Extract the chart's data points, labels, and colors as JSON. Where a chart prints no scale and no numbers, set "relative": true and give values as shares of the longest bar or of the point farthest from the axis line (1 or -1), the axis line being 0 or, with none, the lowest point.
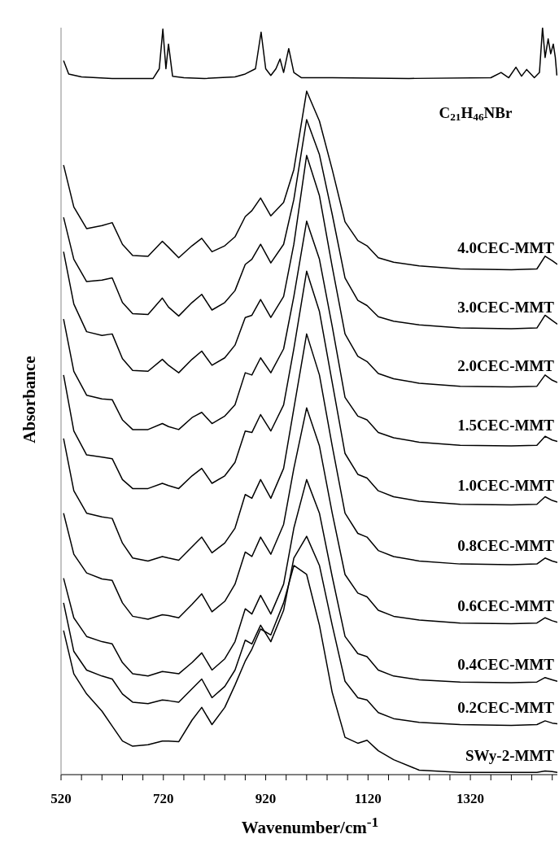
{
  "chart_data": {
    "type": "line",
    "relative": true,
    "xlabel": "Wavenumber/cm$^{-1}$",
    "ylabel": "Absorbance",
    "xlim": [
      520,
      1490
    ],
    "xticks": [
      520,
      {
        "value": 560,
        "label": null
      },
      {
        "value": 600,
        "label": null
      },
      {
        "value": 640,
        "label": null
      },
      {
        "value": 680,
        "label": null
      },
      720,
      {
        "value": 760,
        "label": null
      },
      {
        "value": 800,
        "label": null
      },
      {
        "value": 840,
        "label": null
      },
      {
        "value": 880,
        "label": null
      },
      920,
      {
        "value": 960,
        "label": null
      },
      {
        "value": 1000,
        "label": null
      },
      {
        "value": 1040,
        "label": null
      },
      {
        "value": 1080,
        "label": null
      },
      1120,
      {
        "value": 1160,
        "label": null
      },
      {
        "value": 1200,
        "label": null
      },
      {
        "value": 1240,
        "label": null
      },
      {
        "value": 1280,
        "label": null
      },
      1320,
      {
        "value": 1360,
        "label": null
      },
      {
        "value": 1400,
        "label": null
      },
      {
        "value": 1440,
        "label": null
      },
      {
        "value": 1480,
        "label": null
      }
    ],
    "grid": false,
    "legend": false,
    "marker": "none",
    "line_style": "solid",
    "x": [
      525,
      545,
      570,
      600,
      620,
      640,
      660,
      690,
      718,
      730,
      750,
      776,
      795,
      815,
      840,
      860,
      880,
      893,
      910,
      930,
      955,
      975,
      1000,
      1025,
      1050,
      1075,
      1100,
      1118,
      1140,
      1170,
      1220,
      1300,
      1400,
      1450,
      1466,
      1480,
      1490
    ],
    "series": [
      {
        "name": "C$_{21}$H$_{46}$NBr",
        "color": "#000000",
        "x": [
          525,
          535,
          560,
          620,
          700,
          712,
          719,
          725,
          730,
          738,
          760,
          800,
          860,
          880,
          900,
          911,
          920,
          930,
          940,
          948,
          955,
          965,
          975,
          990,
          1050,
          1200,
          1360,
          1380,
          1395,
          1409,
          1420,
          1430,
          1445,
          1455,
          1461,
          1466,
          1472,
          1477,
          1482,
          1486,
          1489
        ],
        "values": [
          0.956,
          0.938,
          0.934,
          0.932,
          0.932,
          0.945,
          0.998,
          0.945,
          0.978,
          0.935,
          0.933,
          0.932,
          0.934,
          0.938,
          0.945,
          0.994,
          0.945,
          0.936,
          0.945,
          0.958,
          0.94,
          0.972,
          0.94,
          0.933,
          0.933,
          0.932,
          0.933,
          0.94,
          0.933,
          0.947,
          0.935,
          0.944,
          0.933,
          0.94,
          1.0,
          0.96,
          0.985,
          0.965,
          0.978,
          0.96,
          0.936
        ]
      },
      {
        "name": "4.0CEC-MMT",
        "color": "#000000",
        "values": [
          0.816,
          0.76,
          0.731,
          0.735,
          0.739,
          0.71,
          0.695,
          0.694,
          0.714,
          0.706,
          0.692,
          0.708,
          0.718,
          0.7,
          0.708,
          0.72,
          0.747,
          0.755,
          0.772,
          0.748,
          0.766,
          0.81,
          0.915,
          0.875,
          0.81,
          0.74,
          0.715,
          0.708,
          0.692,
          0.686,
          0.681,
          0.677,
          0.676,
          0.677,
          0.694,
          0.688,
          0.683
        ]
      },
      {
        "name": "3.0CEC-MMT",
        "color": "#000000",
        "values": [
          0.746,
          0.69,
          0.66,
          0.662,
          0.665,
          0.632,
          0.617,
          0.616,
          0.638,
          0.626,
          0.614,
          0.632,
          0.643,
          0.622,
          0.632,
          0.648,
          0.683,
          0.69,
          0.71,
          0.685,
          0.71,
          0.77,
          0.877,
          0.83,
          0.75,
          0.665,
          0.635,
          0.628,
          0.613,
          0.607,
          0.602,
          0.598,
          0.597,
          0.598,
          0.615,
          0.608,
          0.603
        ]
      },
      {
        "name": "2.0CEC-MMT",
        "color": "#000000",
        "values": [
          0.7,
          0.63,
          0.593,
          0.588,
          0.59,
          0.557,
          0.541,
          0.54,
          0.556,
          0.548,
          0.538,
          0.556,
          0.567,
          0.548,
          0.558,
          0.575,
          0.612,
          0.615,
          0.636,
          0.612,
          0.64,
          0.71,
          0.829,
          0.775,
          0.68,
          0.59,
          0.56,
          0.553,
          0.537,
          0.53,
          0.524,
          0.52,
          0.519,
          0.52,
          0.535,
          0.528,
          0.525
        ]
      },
      {
        "name": "1.5CEC-MMT",
        "color": "#000000",
        "values": [
          0.61,
          0.54,
          0.508,
          0.503,
          0.502,
          0.475,
          0.462,
          0.462,
          0.47,
          0.466,
          0.462,
          0.478,
          0.485,
          0.47,
          0.48,
          0.495,
          0.538,
          0.535,
          0.558,
          0.538,
          0.57,
          0.64,
          0.741,
          0.69,
          0.6,
          0.505,
          0.48,
          0.475,
          0.458,
          0.451,
          0.445,
          0.441,
          0.44,
          0.441,
          0.453,
          0.448,
          0.446
        ]
      },
      {
        "name": "1.0CEC-MMT",
        "color": "#000000",
        "values": [
          0.535,
          0.46,
          0.428,
          0.425,
          0.423,
          0.395,
          0.383,
          0.383,
          0.39,
          0.387,
          0.383,
          0.4,
          0.41,
          0.39,
          0.4,
          0.418,
          0.46,
          0.458,
          0.482,
          0.46,
          0.495,
          0.57,
          0.674,
          0.62,
          0.525,
          0.43,
          0.402,
          0.397,
          0.38,
          0.372,
          0.366,
          0.362,
          0.361,
          0.362,
          0.372,
          0.367,
          0.365
        ]
      },
      {
        "name": "0.8CEC-MMT",
        "color": "#000000",
        "values": [
          0.45,
          0.38,
          0.35,
          0.345,
          0.343,
          0.31,
          0.29,
          0.286,
          0.292,
          0.29,
          0.287,
          0.305,
          0.318,
          0.297,
          0.31,
          0.33,
          0.375,
          0.37,
          0.395,
          0.37,
          0.41,
          0.49,
          0.59,
          0.535,
          0.44,
          0.35,
          0.323,
          0.318,
          0.3,
          0.292,
          0.286,
          0.282,
          0.281,
          0.282,
          0.29,
          0.286,
          0.284
        ]
      },
      {
        "name": "0.6CEC-MMT",
        "color": "#000000",
        "values": [
          0.35,
          0.295,
          0.27,
          0.262,
          0.26,
          0.23,
          0.212,
          0.208,
          0.214,
          0.213,
          0.21,
          0.228,
          0.242,
          0.218,
          0.232,
          0.255,
          0.298,
          0.292,
          0.318,
          0.295,
          0.335,
          0.41,
          0.491,
          0.44,
          0.35,
          0.268,
          0.243,
          0.238,
          0.22,
          0.212,
          0.207,
          0.203,
          0.202,
          0.203,
          0.21,
          0.206,
          0.204
        ]
      },
      {
        "name": "0.4CEC-MMT",
        "color": "#000000",
        "values": [
          0.263,
          0.21,
          0.185,
          0.178,
          0.175,
          0.15,
          0.135,
          0.132,
          0.138,
          0.137,
          0.135,
          0.15,
          0.163,
          0.14,
          0.155,
          0.178,
          0.222,
          0.215,
          0.24,
          0.215,
          0.255,
          0.33,
          0.395,
          0.35,
          0.265,
          0.185,
          0.162,
          0.158,
          0.14,
          0.132,
          0.127,
          0.124,
          0.123,
          0.124,
          0.13,
          0.127,
          0.125
        ]
      },
      {
        "name": "0.2CEC-MMT",
        "color": "#000000",
        "values": [
          0.23,
          0.165,
          0.14,
          0.132,
          0.128,
          0.108,
          0.097,
          0.095,
          0.1,
          0.099,
          0.097,
          0.115,
          0.128,
          0.103,
          0.118,
          0.14,
          0.18,
          0.175,
          0.2,
          0.178,
          0.22,
          0.29,
          0.319,
          0.28,
          0.2,
          0.125,
          0.103,
          0.1,
          0.083,
          0.075,
          0.07,
          0.067,
          0.066,
          0.067,
          0.072,
          0.069,
          0.068
        ]
      },
      {
        "name": "SWy-2-MMT",
        "color": "#000000",
        "values": [
          0.193,
          0.135,
          0.108,
          0.085,
          0.065,
          0.045,
          0.038,
          0.04,
          0.045,
          0.045,
          0.044,
          0.073,
          0.09,
          0.067,
          0.09,
          0.12,
          0.152,
          0.168,
          0.195,
          0.187,
          0.23,
          0.28,
          0.268,
          0.2,
          0.11,
          0.05,
          0.042,
          0.046,
          0.032,
          0.02,
          0.006,
          0.003,
          0.003,
          0.003,
          0.005,
          0.004,
          0.003
        ]
      }
    ]
  }
}
